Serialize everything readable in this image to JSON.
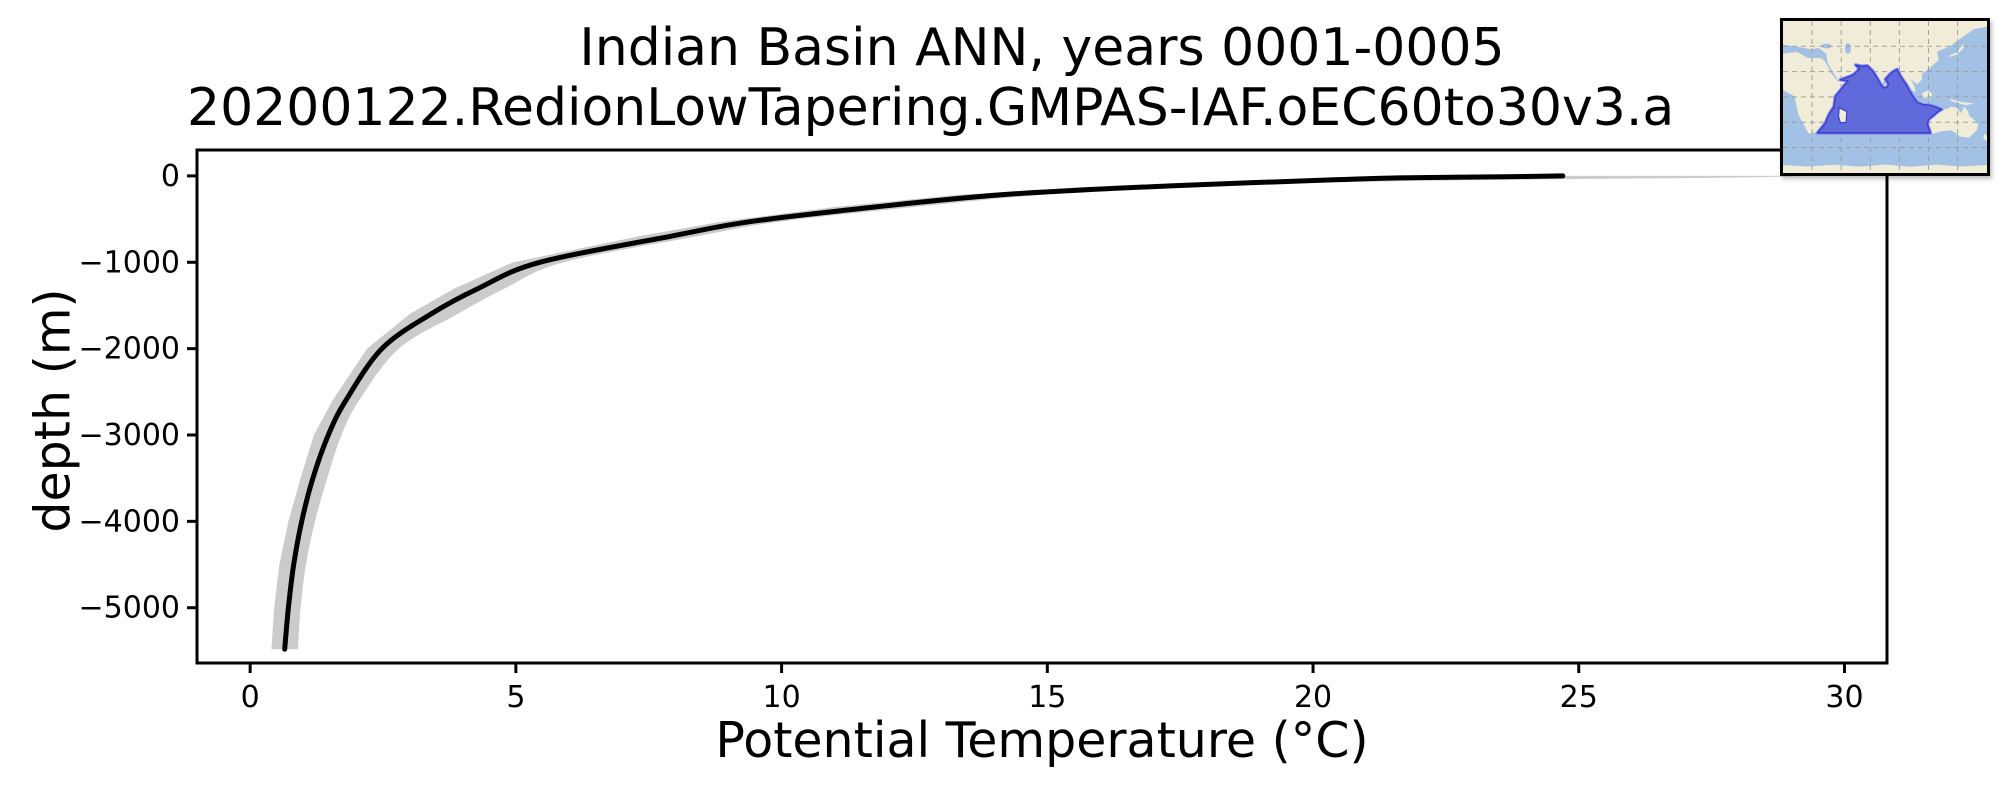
{
  "title": {
    "line1": "Indian Basin ANN, years 0001-0005",
    "line2": "20200122.RedionLowTapering.GMPAS-IAF.oEC60to30v3.a"
  },
  "axes": {
    "xlabel": "Potential Temperature (°C)",
    "ylabel": "depth (m)"
  },
  "colors": {
    "profile_line": "#000000",
    "envelope": "#cbcbcb",
    "spine": "#000000",
    "tick_label": "#000000"
  },
  "chart_data": {
    "type": "line",
    "title": "Indian Basin ANN, years 0001-0005",
    "subtitle": "20200122.RedionLowTapering.GMPAS-IAF.oEC60to30v3.a",
    "xlabel": "Potential Temperature (°C)",
    "ylabel": "depth (m)",
    "xlim": [
      -1.0,
      30.8
    ],
    "ylim": [
      -5640,
      300
    ],
    "x_ticks": [
      0,
      5,
      10,
      15,
      20,
      25,
      30
    ],
    "y_ticks": [
      0,
      -1000,
      -2000,
      -3000,
      -4000,
      -5000
    ],
    "grid": false,
    "legend": "none",
    "series": [
      {
        "name": "mean potential temperature profile",
        "style": "solid black line",
        "depth_m": [
          0,
          -10,
          -23,
          -45,
          -80,
          -140,
          -220,
          -360,
          -530,
          -700,
          -1000,
          -1300,
          -1600,
          -2000,
          -2600,
          -3000,
          -3500,
          -4000,
          -4500,
          -5000,
          -5480
        ],
        "temperature_c": [
          24.7,
          23.6,
          21.6,
          20.4,
          18.8,
          16.4,
          14.1,
          11.75,
          9.4,
          7.9,
          5.45,
          4.3,
          3.4,
          2.48,
          1.8,
          1.47,
          1.18,
          0.97,
          0.82,
          0.72,
          0.65
        ]
      },
      {
        "name": "min/max envelope (shaded range)",
        "style": "grey filled band",
        "depth_m": [
          0,
          -20,
          -45,
          -80,
          -140,
          -220,
          -360,
          -530,
          -700,
          -1000,
          -1300,
          -1600,
          -2000,
          -2600,
          -3000,
          -3500,
          -4000,
          -4500,
          -5000,
          -5480
        ],
        "t_min_c": [
          23.6,
          20.6,
          19.5,
          17.7,
          15.5,
          13.3,
          11.0,
          8.85,
          7.3,
          4.95,
          3.85,
          3.0,
          2.2,
          1.55,
          1.2,
          0.95,
          0.72,
          0.55,
          0.45,
          0.4
        ],
        "t_max_c": [
          29.3,
          27.8,
          23.6,
          19.9,
          17.3,
          14.9,
          12.5,
          9.95,
          8.4,
          5.9,
          4.8,
          3.9,
          2.8,
          2.05,
          1.72,
          1.45,
          1.22,
          1.05,
          0.95,
          0.9
        ]
      }
    ]
  },
  "inset_map": {
    "description": "world map inset highlighting the Indian Ocean basin region",
    "colors": {
      "ocean": "#a3c1e5",
      "land": "#f1ecd8",
      "region_fill": "#5a61d8",
      "region_edge": "#3a3ed2",
      "region_halo": "#8d93ea",
      "grid": "#9a9a9a",
      "border": "#000000"
    }
  }
}
